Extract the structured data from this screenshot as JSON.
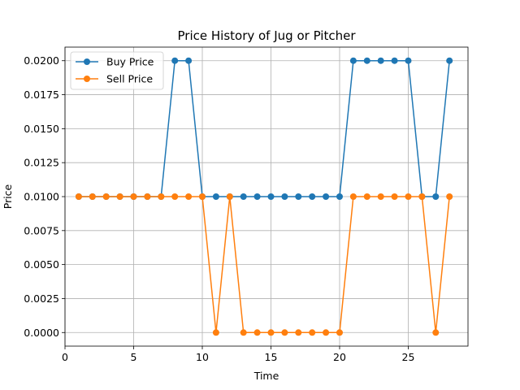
{
  "chart_data": {
    "type": "line",
    "title": "Price History of Jug or Pitcher",
    "xlabel": "Time",
    "ylabel": "Price",
    "xlim": [
      0,
      29.35
    ],
    "ylim": [
      -0.001,
      0.021
    ],
    "xticks": [
      0,
      5,
      10,
      15,
      20,
      25
    ],
    "yticks": [
      0.0,
      0.0025,
      0.005,
      0.0075,
      0.01,
      0.0125,
      0.015,
      0.0175,
      0.02
    ],
    "ytick_labels": [
      "0.0000",
      "0.0025",
      "0.0050",
      "0.0075",
      "0.0100",
      "0.0125",
      "0.0150",
      "0.0175",
      "0.0200"
    ],
    "grid": true,
    "legend_position": "top-left",
    "x": [
      1,
      2,
      3,
      4,
      5,
      6,
      7,
      8,
      9,
      10,
      11,
      12,
      13,
      14,
      15,
      16,
      17,
      18,
      19,
      20,
      21,
      22,
      23,
      24,
      25,
      26,
      27,
      28
    ],
    "series": [
      {
        "name": "Buy Price",
        "color": "#1f77b4",
        "values": [
          0.01,
          0.01,
          0.01,
          0.01,
          0.01,
          0.01,
          0.01,
          0.02,
          0.02,
          0.01,
          0.01,
          0.01,
          0.01,
          0.01,
          0.01,
          0.01,
          0.01,
          0.01,
          0.01,
          0.01,
          0.02,
          0.02,
          0.02,
          0.02,
          0.02,
          0.01,
          0.01,
          0.02
        ]
      },
      {
        "name": "Sell Price",
        "color": "#ff7f0e",
        "values": [
          0.01,
          0.01,
          0.01,
          0.01,
          0.01,
          0.01,
          0.01,
          0.01,
          0.01,
          0.01,
          0.0,
          0.01,
          0.0,
          0.0,
          0.0,
          0.0,
          0.0,
          0.0,
          0.0,
          0.0,
          0.01,
          0.01,
          0.01,
          0.01,
          0.01,
          0.01,
          0.0,
          0.01
        ]
      }
    ]
  }
}
